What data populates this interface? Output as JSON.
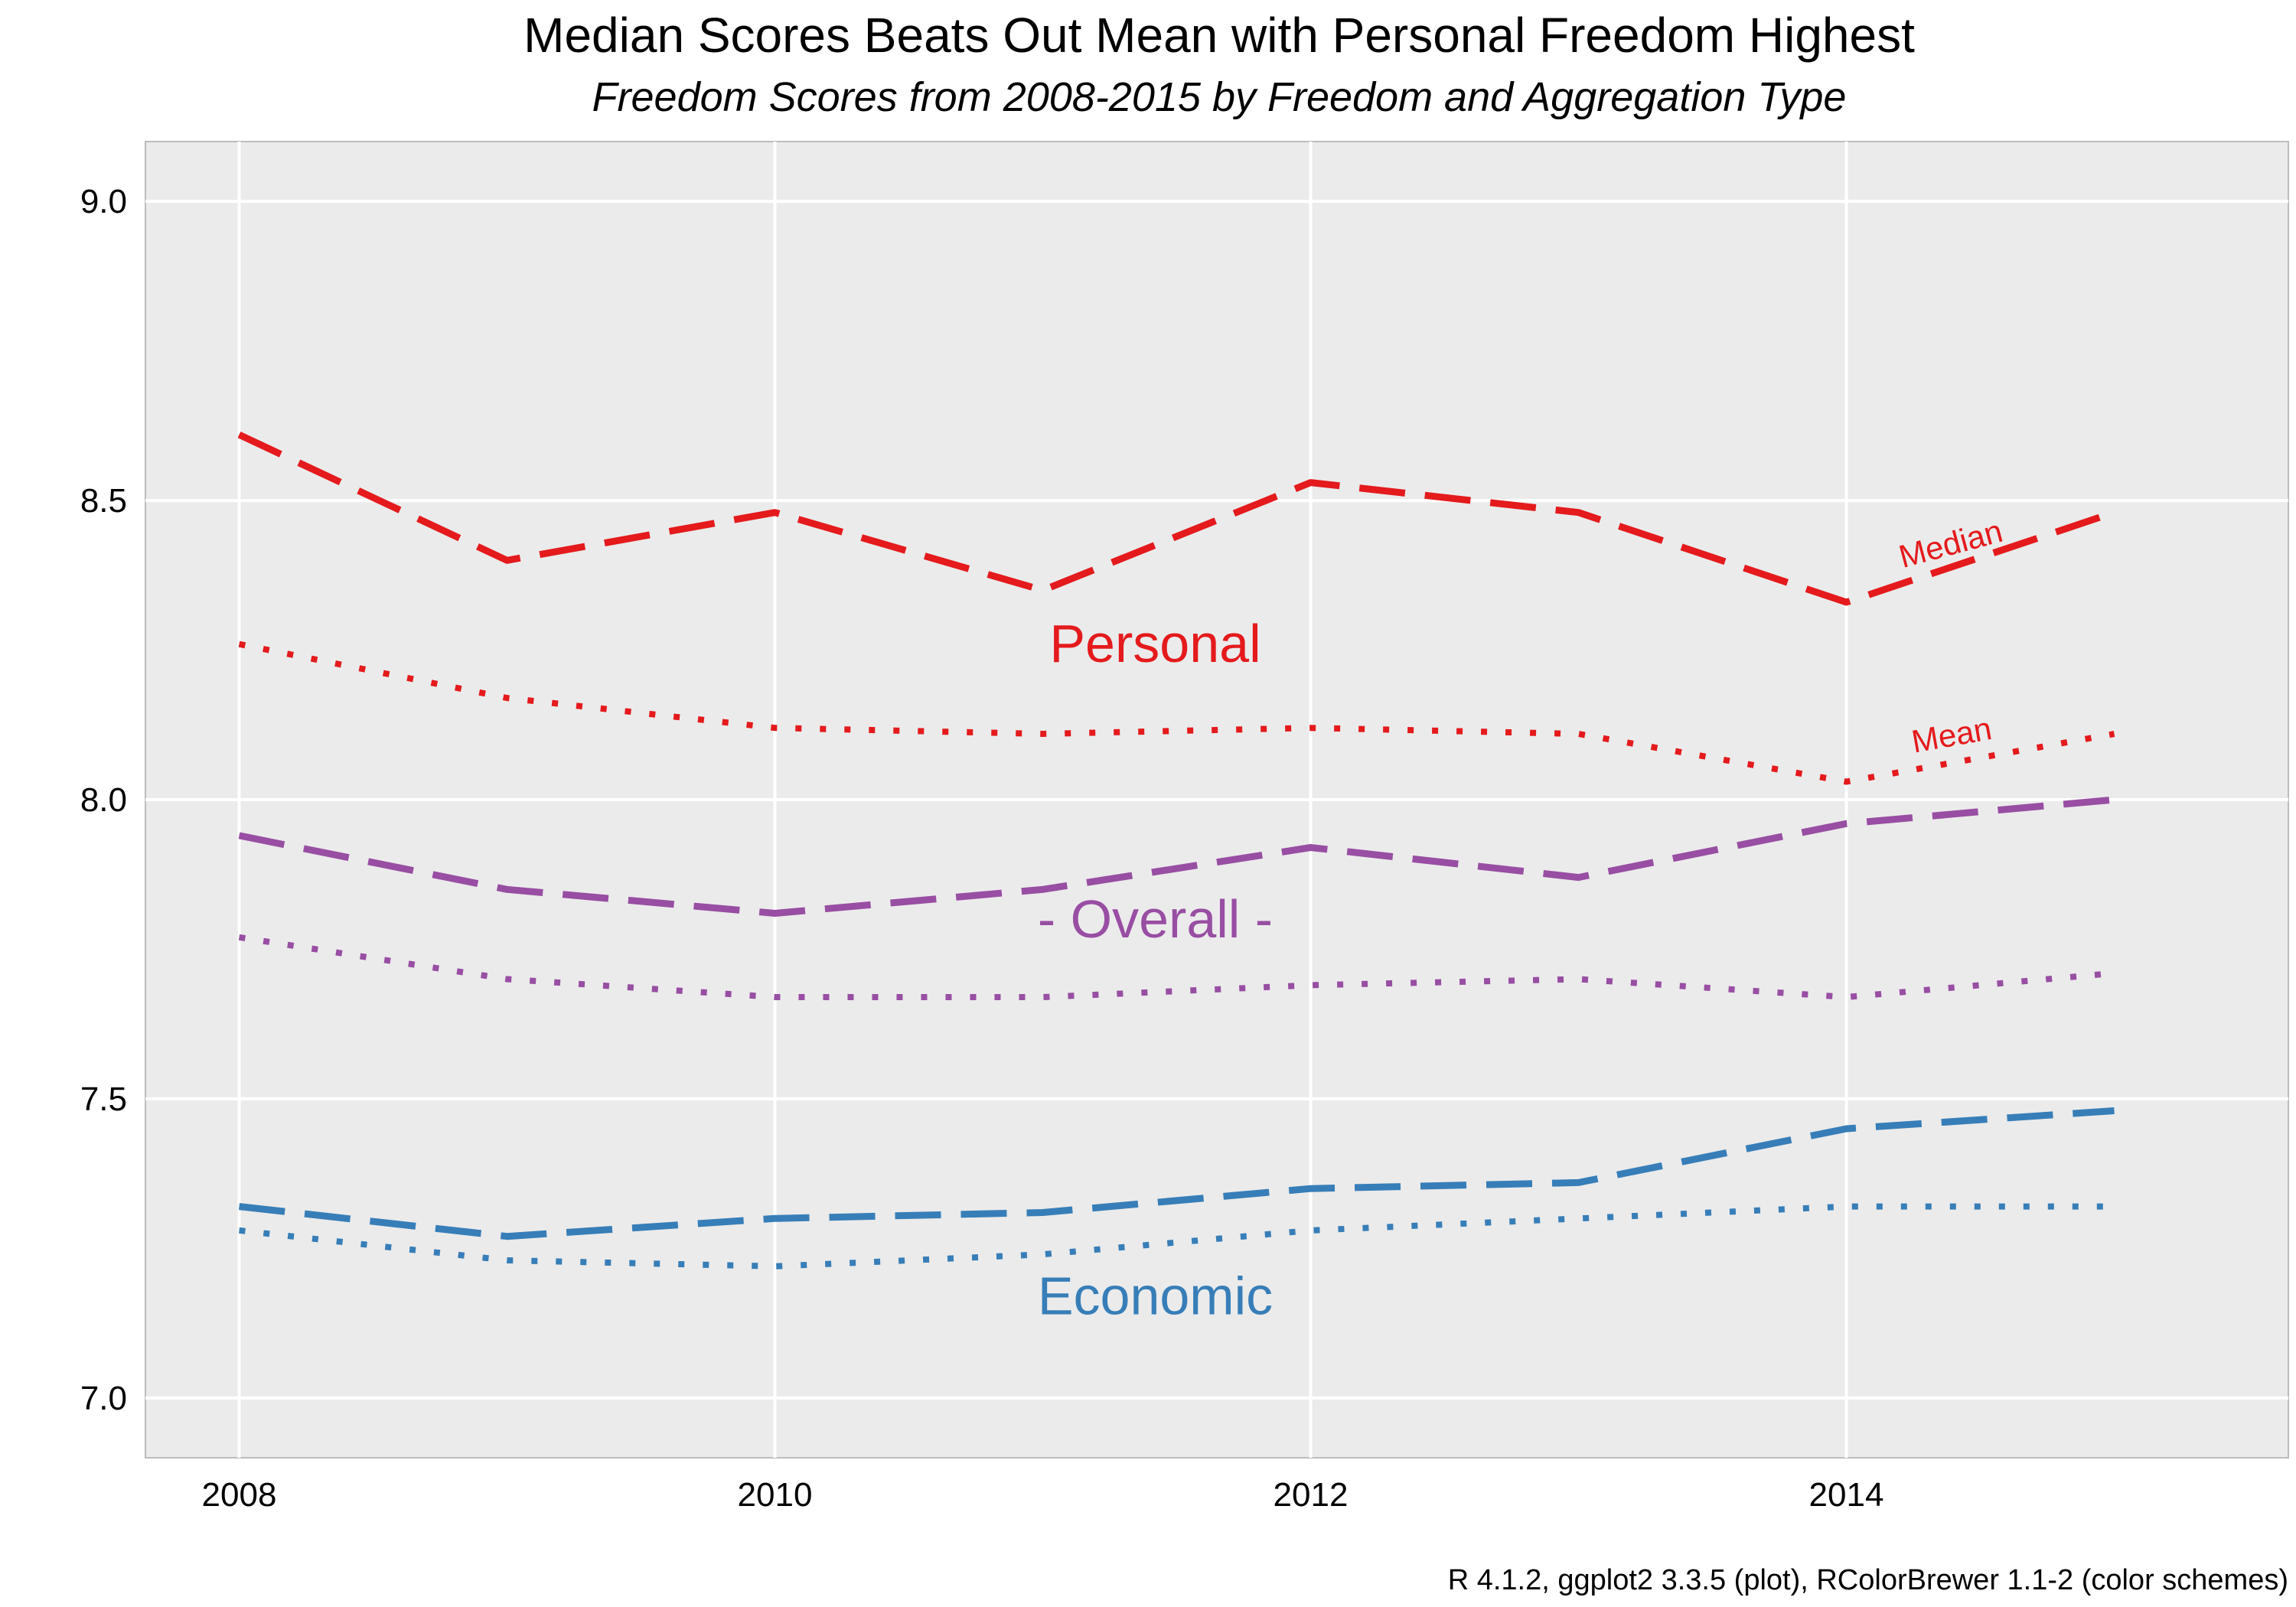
{
  "chart_data": {
    "type": "line",
    "title": "Median Scores Beats Out Mean with Personal Freedom Highest",
    "subtitle": "Freedom Scores from 2008-2015 by Freedom and Aggregation Type",
    "caption": "R 4.1.2, ggplot2 3.3.5 (plot), RColorBrewer 1.1-2 (color schemes)",
    "xlabel": "",
    "ylabel": "",
    "x": [
      2008,
      2009,
      2010,
      2011,
      2012,
      2013,
      2014,
      2015
    ],
    "xlim": [
      2007.65,
      2015.65
    ],
    "ylim": [
      6.9,
      9.1
    ],
    "x_ticks": [
      2008,
      2010,
      2012,
      2014
    ],
    "y_ticks": [
      "7.0",
      "7.5",
      "8.0",
      "8.5",
      "9.0"
    ],
    "grid": true,
    "legend": "none",
    "panel_background": "#EBEBEB",
    "series": [
      {
        "group": "Personal",
        "aggregation": "Median",
        "color": "#E41A1C",
        "dash": "dashed",
        "values": [
          8.61,
          8.4,
          8.48,
          8.35,
          8.53,
          8.48,
          8.33,
          8.48
        ]
      },
      {
        "group": "Personal",
        "aggregation": "Mean",
        "color": "#E41A1C",
        "dash": "dotted",
        "values": [
          8.26,
          8.17,
          8.12,
          8.11,
          8.12,
          8.11,
          8.03,
          8.11
        ]
      },
      {
        "group": "Overall",
        "aggregation": "Median",
        "color": "#984EA3",
        "dash": "dashed",
        "values": [
          7.94,
          7.85,
          7.81,
          7.85,
          7.92,
          7.87,
          7.96,
          8.0
        ]
      },
      {
        "group": "Overall",
        "aggregation": "Mean",
        "color": "#984EA3",
        "dash": "dotted",
        "values": [
          7.77,
          7.7,
          7.67,
          7.67,
          7.69,
          7.7,
          7.67,
          7.71
        ]
      },
      {
        "group": "Economic",
        "aggregation": "Median",
        "color": "#377EB8",
        "dash": "dashed",
        "values": [
          7.32,
          7.27,
          7.3,
          7.31,
          7.35,
          7.36,
          7.45,
          7.48
        ]
      },
      {
        "group": "Economic",
        "aggregation": "Mean",
        "color": "#377EB8",
        "dash": "dotted",
        "values": [
          7.28,
          7.23,
          7.22,
          7.24,
          7.28,
          7.3,
          7.32,
          7.32
        ]
      }
    ],
    "annotations": [
      {
        "text": "Personal",
        "x": 2011.42,
        "y": 8.23,
        "color": "#E41A1C",
        "kind": "group"
      },
      {
        "text": "- Overall -",
        "x": 2011.42,
        "y": 7.77,
        "color": "#984EA3",
        "kind": "group"
      },
      {
        "text": "Economic",
        "x": 2011.42,
        "y": 7.14,
        "color": "#377EB8",
        "kind": "group"
      },
      {
        "text": "Median",
        "x": 2014.4,
        "y": 8.41,
        "color": "#E41A1C",
        "kind": "aggregation",
        "angle": -15
      },
      {
        "text": "Mean",
        "x": 2014.4,
        "y": 8.09,
        "color": "#E41A1C",
        "kind": "aggregation",
        "angle": -10
      }
    ]
  }
}
